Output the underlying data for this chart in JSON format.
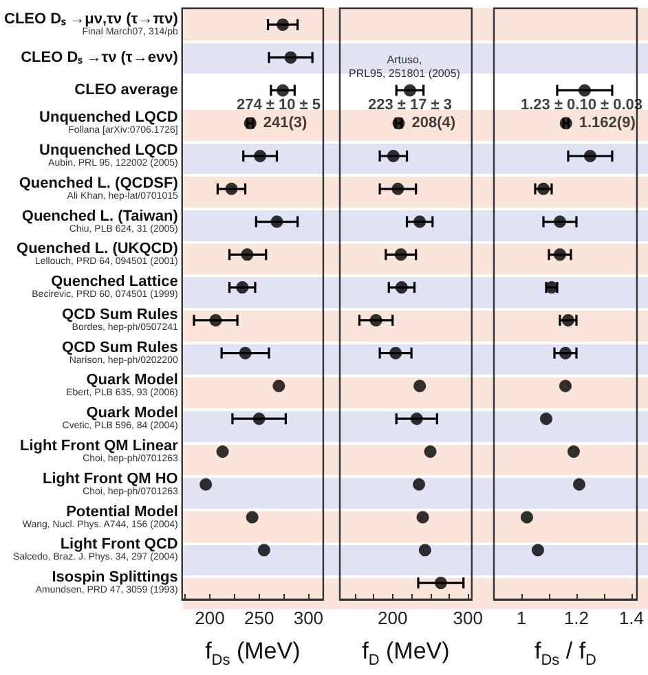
{
  "chart_data": [
    {
      "type": "scatter",
      "orientation": "horizontal",
      "xlabel": "f$_{Ds}$ (MeV)",
      "color": "#000000",
      "marker": "circle",
      "grid": false,
      "categories": [
        "CLEO Dₛ →μν,τν (τ→πν)\nFinal March07, 314/pb",
        "CLEO Dₛ →τν (τ→eνν)",
        "CLEO average",
        "Unquenched LQCD\nFollana [arXiv:0706.1726]",
        "Unquenched LQCD\nAubin, PRL 95, 122002 (2005)",
        "Quenched L. (QCDSF)\nAli Khan, hep-lat/0701015",
        "Quenched L. (Taiwan)\nChiu, PLB 624, 31 (2005)",
        "Quenched L. (UKQCD)\nLellouch, PRD 64, 094501 (2001)",
        "Quenched Lattice\nBecirevic, PRD 60, 074501 (1999)",
        "QCD Sum Rules\nBordes, hep-ph/0507241",
        "QCD Sum Rules\nNarison, hep-ph/0202200",
        "Quark Model\nEbert, PLB 635, 93 (2006)",
        "Quark Model\nCvetic, PLB 596, 84 (2004)",
        "Light Front QM Linear\nChoi, hep-ph/0701263",
        "Light Front QM HO\nChoi, hep-ph/0701263",
        "Potential Model\nWang, Nucl. Phys. A744, 156 (2004)",
        "Light Front QCD\nSalcedo, Braz. J. Phys. 34, 297 (2004)",
        "Isospin Splittings\nAmundsen, PRD 47, 3059 (1993)"
      ],
      "values": [
        274,
        282,
        274,
        241,
        251,
        222,
        268,
        238,
        233,
        206,
        236,
        270,
        250,
        213,
        196,
        243,
        255,
        null
      ],
      "errors": [
        15,
        22,
        12,
        3,
        17,
        14,
        21,
        [
          220,
          257
        ],
        13,
        22,
        24,
        null,
        27,
        null,
        null,
        null,
        null,
        null
      ],
      "value_labels": [
        null,
        null,
        "274 ± 10 ± 5",
        "241(3)",
        null,
        null,
        null,
        null,
        null,
        null,
        null,
        null,
        null,
        null,
        null,
        null,
        null,
        null
      ],
      "xlim": [
        172,
        315
      ],
      "xticks": [
        {
          "value": 175,
          "label": null
        },
        200,
        {
          "value": 225,
          "label": null
        },
        250,
        {
          "value": 275,
          "label": null
        },
        300
      ]
    },
    {
      "type": "scatter",
      "orientation": "horizontal",
      "xlabel": "f$_{D}$ (MeV)",
      "color": "#000000",
      "marker": "circle",
      "grid": false,
      "tick_labels": "x",
      "categories": [
        "CLEO Dₛ →μν,τν (τ→πν)\nFinal March07, 314/pb",
        "CLEO Dₛ →τν (τ→eνν)",
        "CLEO average",
        "Unquenched LQCD\nFollana [arXiv:0706.1726]",
        "Unquenched LQCD\nAubin, PRL 95, 122002 (2005)",
        "Quenched L. (QCDSF)\nAli Khan, hep-lat/0701015",
        "Quenched L. (Taiwan)\nChiu, PLB 624, 31 (2005)",
        "Quenched L. (UKQCD)\nLellouch, PRD 64, 094501 (2001)",
        "Quenched Lattice\nBecirevic, PRD 60, 074501 (1999)",
        "QCD Sum Rules\nBordes, hep-ph/0507241",
        "QCD Sum Rules\nNarison, hep-ph/0202200",
        "Quark Model\nEbert, PLB 635, 93 (2006)",
        "Quark Model\nCvetic, PLB 596, 84 (2004)",
        "Light Front QM Linear\nChoi, hep-ph/0701263",
        "Light Front QM HO\nChoi, hep-ph/0701263",
        "Potential Model\nWang, Nucl. Phys. A744, 156 (2004)",
        "Light Front QCD\nSalcedo, Braz. J. Phys. 34, 297 (2004)",
        "Isospin Splittings\nAmundsen, PRD 47, 3059 (1993)"
      ],
      "values": [
        null,
        null,
        223,
        208,
        201,
        207,
        236,
        211,
        212,
        178,
        204,
        236,
        232,
        250,
        235,
        240,
        243,
        264
      ],
      "errors": [
        null,
        null,
        18,
        4,
        18,
        24,
        17,
        20,
        17,
        22,
        21,
        null,
        27,
        null,
        null,
        null,
        null,
        30
      ],
      "value_labels": [
        null,
        null,
        "223 ± 17 ± 3",
        "208(4)",
        null,
        null,
        null,
        null,
        null,
        null,
        null,
        null,
        null,
        null,
        null,
        null,
        null,
        null
      ],
      "annotations": [
        {
          "text": "Artuso,\nPRL95, 251801 (2005)",
          "x": 223,
          "y": "CLEO average"
        }
      ],
      "xlim": [
        130,
        305
      ],
      "xticks": [
        {
          "value": 150,
          "label": null
        },
        {
          "value": 175,
          "label": null
        },
        200,
        {
          "value": 225,
          "label": null
        },
        {
          "value": 250,
          "label": null
        },
        {
          "value": 275,
          "label": null
        },
        300
      ]
    },
    {
      "type": "scatter",
      "orientation": "horizontal",
      "xlabel": "f$_{Ds}$ / f$_{D}$",
      "color": "#000000",
      "marker": "circle",
      "grid": false,
      "tick_labels": "x",
      "categories": [
        "CLEO Dₛ →μν,τν (τ→πν)\nFinal March07, 314/pb",
        "CLEO Dₛ →τν (τ→eνν)",
        "CLEO average",
        "Unquenched LQCD\nFollana [arXiv:0706.1726]",
        "Unquenched LQCD\nAubin, PRL 95, 122002 (2005)",
        "Quenched L. (QCDSF)\nAli Khan, hep-lat/0701015",
        "Quenched L. (Taiwan)\nChiu, PLB 624, 31 (2005)",
        "Quenched L. (UKQCD)\nLellouch, PRD 64, 094501 (2001)",
        "Quenched Lattice\nBecirevic, PRD 60, 074501 (1999)",
        "QCD Sum Rules\nBordes, hep-ph/0507241",
        "QCD Sum Rules\nNarison, hep-ph/0202200",
        "Quark Model\nEbert, PLB 635, 93 (2006)",
        "Quark Model\nCvetic, PLB 596, 84 (2004)",
        "Light Front QM Linear\nChoi, hep-ph/0701263",
        "Light Front QM HO\nChoi, hep-ph/0701263",
        "Potential Model\nWang, Nucl. Phys. A744, 156 (2004)",
        "Light Front QCD\nSalcedo, Braz. J. Phys. 34, 297 (2004)",
        "Isospin Splittings\nAmundsen, PRD 47, 3059 (1993)"
      ],
      "values": [
        null,
        null,
        1.23,
        1.162,
        1.25,
        1.08,
        1.14,
        1.14,
        1.11,
        1.17,
        1.16,
        1.16,
        1.09,
        1.19,
        1.21,
        1.02,
        1.06,
        null
      ],
      "errors": [
        null,
        null,
        0.1,
        0.009,
        0.08,
        0.03,
        0.06,
        0.04,
        0.02,
        0.03,
        0.04,
        null,
        null,
        null,
        null,
        null,
        null,
        null
      ],
      "value_labels": [
        null,
        null,
        "1.23 ± 0.10 ± 0.03",
        "1.162(9)",
        null,
        null,
        null,
        null,
        null,
        null,
        null,
        null,
        null,
        null,
        null,
        null,
        null,
        null
      ],
      "xlim": [
        0.9,
        1.42
      ],
      "xticks": [
        1,
        {
          "value": 1.1,
          "label": null
        },
        1.2,
        {
          "value": 1.3,
          "label": null
        },
        1.4
      ]
    }
  ]
}
